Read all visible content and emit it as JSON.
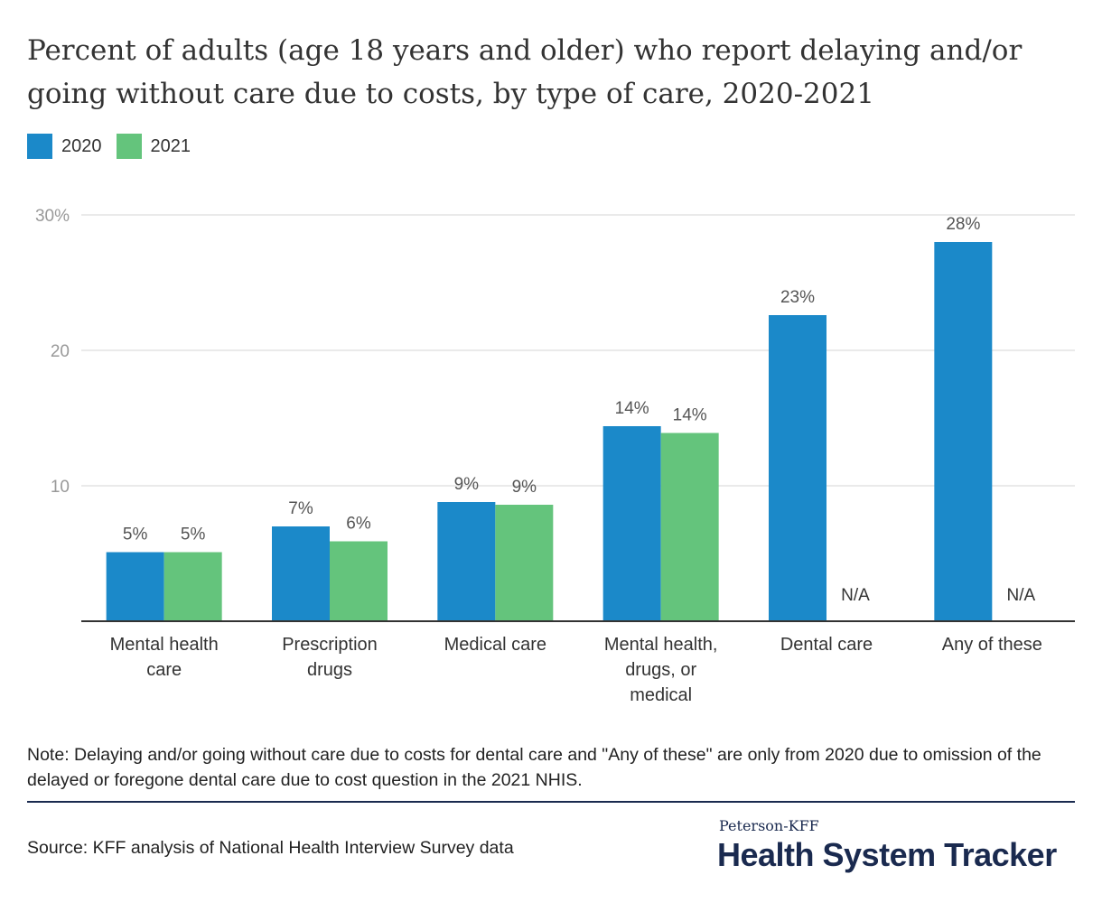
{
  "chart_data": {
    "type": "bar",
    "title": "Percent of adults (age 18 years and older) who report delaying and/or going without care due to costs, by type of care, 2020-2021",
    "categories": [
      [
        "Mental health",
        "care"
      ],
      [
        "Prescription",
        "drugs"
      ],
      [
        "Medical care"
      ],
      [
        "Mental health,",
        "drugs, or",
        "medical"
      ],
      [
        "Dental care"
      ],
      [
        "Any of these"
      ]
    ],
    "series": [
      {
        "name": "2020",
        "color": "#1b89c9",
        "values": [
          5.1,
          7.0,
          8.8,
          14.4,
          22.6,
          28.0
        ],
        "labels": [
          "5%",
          "7%",
          "9%",
          "14%",
          "23%",
          "28%"
        ]
      },
      {
        "name": "2021",
        "color": "#64c47c",
        "values": [
          5.1,
          5.9,
          8.6,
          13.9,
          null,
          null
        ],
        "labels": [
          "5%",
          "6%",
          "9%",
          "14%",
          "N/A",
          "N/A"
        ]
      }
    ],
    "ylim": [
      0,
      30
    ],
    "yticks": [
      10,
      20,
      30
    ],
    "ytick_labels": [
      "10",
      "20",
      "30%"
    ],
    "xlabel": "",
    "ylabel": "",
    "grid": true,
    "legend_position": "top-left"
  },
  "note": "Note: Delaying and/or going without care due to costs for dental care and \"Any of these\" are only from 2020 due to omission of the delayed or foregone dental care due to cost question in the 2021 NHIS.",
  "source": "Source: KFF analysis of National Health Interview Survey data",
  "brand": {
    "top": "Peterson-KFF",
    "main": "Health System Tracker"
  }
}
